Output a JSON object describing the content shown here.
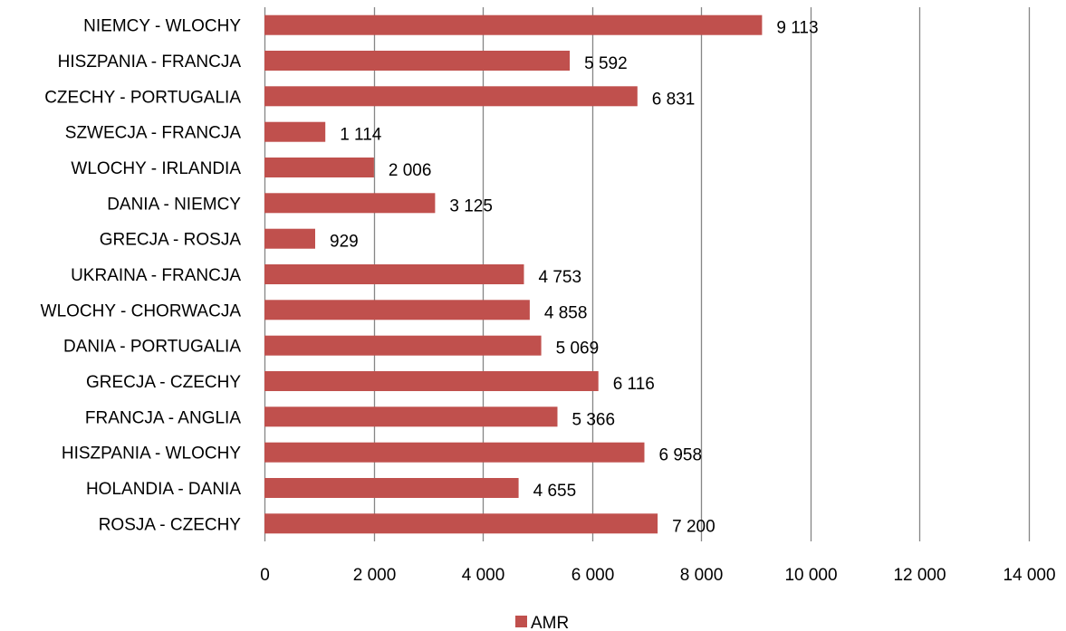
{
  "chart_data": {
    "type": "bar",
    "orientation": "horizontal",
    "categories": [
      "NIEMCY - WLOCHY",
      "HISZPANIA - FRANCJA",
      "CZECHY - PORTUGALIA",
      "SZWECJA - FRANCJA",
      "WLOCHY - IRLANDIA",
      "DANIA - NIEMCY",
      "GRECJA - ROSJA",
      "UKRAINA - FRANCJA",
      "WLOCHY - CHORWACJA",
      "DANIA - PORTUGALIA",
      "GRECJA - CZECHY",
      "FRANCJA - ANGLIA",
      "HISZPANIA - WLOCHY",
      "HOLANDIA - DANIA",
      "ROSJA - CZECHY"
    ],
    "series": [
      {
        "name": "AMR",
        "color": "#c0504d",
        "values": [
          9113,
          5592,
          6831,
          1114,
          2006,
          3125,
          929,
          4753,
          4858,
          5069,
          6116,
          5366,
          6958,
          4655,
          7200
        ],
        "labels": [
          "9 113",
          "5 592",
          "6 831",
          "1 114",
          "2 006",
          "3 125",
          "929",
          "4 753",
          "4 858",
          "5 069",
          "6 116",
          "5 366",
          "6 958",
          "4 655",
          "7 200"
        ]
      }
    ],
    "xlim": [
      0,
      14000
    ],
    "xticks": [
      0,
      2000,
      4000,
      6000,
      8000,
      10000,
      12000,
      14000
    ],
    "xtick_labels": [
      "0",
      "2 000",
      "4 000",
      "6 000",
      "8 000",
      "10 000",
      "12 000",
      "14 000"
    ],
    "grid": "vertical",
    "gridline_color": "#868686",
    "legend_position": "bottom"
  }
}
